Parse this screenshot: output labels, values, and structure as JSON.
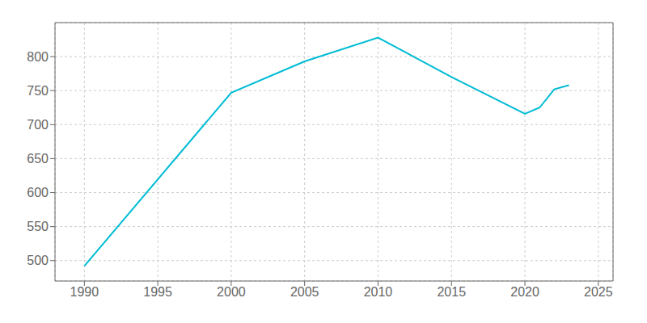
{
  "chart_data": {
    "type": "line",
    "x": [
      1990,
      2000,
      2005,
      2010,
      2015,
      2020,
      2021,
      2022,
      2023
    ],
    "values": [
      492,
      747,
      793,
      828,
      770,
      716,
      725,
      752,
      758
    ],
    "color": "#00BCD4",
    "xlim": [
      1988,
      2026
    ],
    "ylim": [
      470,
      850
    ],
    "xticks": [
      1990,
      1995,
      2000,
      2005,
      2010,
      2015,
      2020,
      2025
    ],
    "yticks": [
      500,
      550,
      600,
      650,
      700,
      750,
      800
    ],
    "grid": true
  }
}
